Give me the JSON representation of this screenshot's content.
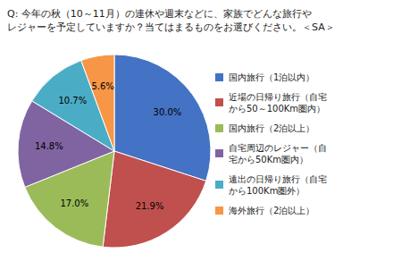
{
  "chart_data": {
    "type": "pie",
    "title": "Q: 今年の秋（10～11月）の連休や週末などに、家族でどんな旅行や\nレジャーを予定していますか？当てはまるものをお選びください。＜SA＞",
    "categories": [
      "国内旅行（1泊以内）",
      "近場の日帰り旅行（自宅\nから50～100Km圏内）",
      "国内旅行（2泊以上）",
      "自宅周辺のレジャー（自\n宅から50Km圏内）",
      "遠出の日帰り旅行（自宅\nから100Km圏外）",
      "海外旅行（2泊以上）"
    ],
    "values": [
      30.0,
      21.9,
      17.0,
      14.8,
      10.7,
      5.6
    ],
    "value_labels": [
      "30.0%",
      "21.9%",
      "17.0%",
      "14.8%",
      "10.7%",
      "5.6%"
    ],
    "colors": [
      "#4472C4",
      "#C0504D",
      "#9BBB59",
      "#8064A2",
      "#4BACC6",
      "#F79646"
    ],
    "data_labels": true,
    "legend": "right"
  }
}
